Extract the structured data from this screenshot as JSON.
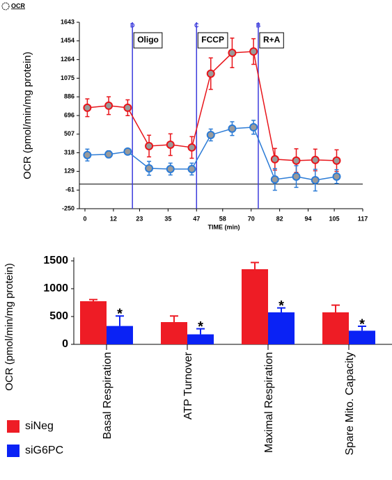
{
  "chart_data": [
    {
      "type": "line",
      "legend": "OCR",
      "xlabel": "TIME (min)",
      "ylabel": "OCR (pmol/min/mg protein)",
      "xlim": [
        0,
        117
      ],
      "xticks": [
        0,
        12,
        23,
        35,
        47,
        58,
        70,
        82,
        94,
        105,
        117
      ],
      "ylim": [
        -250,
        1643
      ],
      "yticks": [
        -250,
        -61,
        129,
        318,
        507,
        696,
        886,
        1075,
        1264,
        1454,
        1643
      ],
      "zero_line": true,
      "phases": [
        {
          "x": 20,
          "letter": "D",
          "label": "Oligo"
        },
        {
          "x": 47,
          "letter": "C",
          "label": "FCCP"
        },
        {
          "x": 73,
          "letter": "B",
          "label": "R+A"
        }
      ],
      "x": [
        1,
        10,
        18,
        27,
        36,
        45,
        53,
        62,
        71,
        80,
        89,
        97,
        106
      ],
      "series": [
        {
          "color": "#e8141a",
          "values": [
            775,
            796,
            775,
            386,
            400,
            372,
            1121,
            1332,
            1346,
            252,
            238,
            245,
            238
          ],
          "errors": [
            90,
            90,
            80,
            110,
            110,
            110,
            160,
            150,
            130,
            110,
            120,
            110,
            110
          ]
        },
        {
          "color": "#2b7bd6",
          "values": [
            295,
            302,
            330,
            160,
            153,
            153,
            499,
            563,
            577,
            47,
            76,
            40,
            76
          ],
          "errors": [
            60,
            35,
            30,
            70,
            60,
            60,
            60,
            70,
            70,
            110,
            110,
            110,
            70
          ]
        }
      ]
    },
    {
      "type": "bar",
      "ylabel": "OCR (pmol/min/mg protein)",
      "categories": [
        "Basal Respiration",
        "ATP Turnover",
        "Maximal Respiration",
        "Spare Mito. Capacity"
      ],
      "ylim": [
        0,
        1500
      ],
      "yticks": [
        0,
        500,
        1000,
        1500
      ],
      "significance": [
        "*",
        "*",
        "*",
        "*"
      ],
      "legend_position": "lower left",
      "series": [
        {
          "name": "siNeg",
          "color": "#ee1c25",
          "values": [
            775,
            400,
            1350,
            575
          ],
          "errors": [
            30,
            110,
            120,
            130
          ]
        },
        {
          "name": "siG6PC",
          "color": "#0a22f5",
          "values": [
            330,
            180,
            575,
            245
          ],
          "errors": [
            180,
            100,
            80,
            80
          ]
        }
      ]
    }
  ]
}
